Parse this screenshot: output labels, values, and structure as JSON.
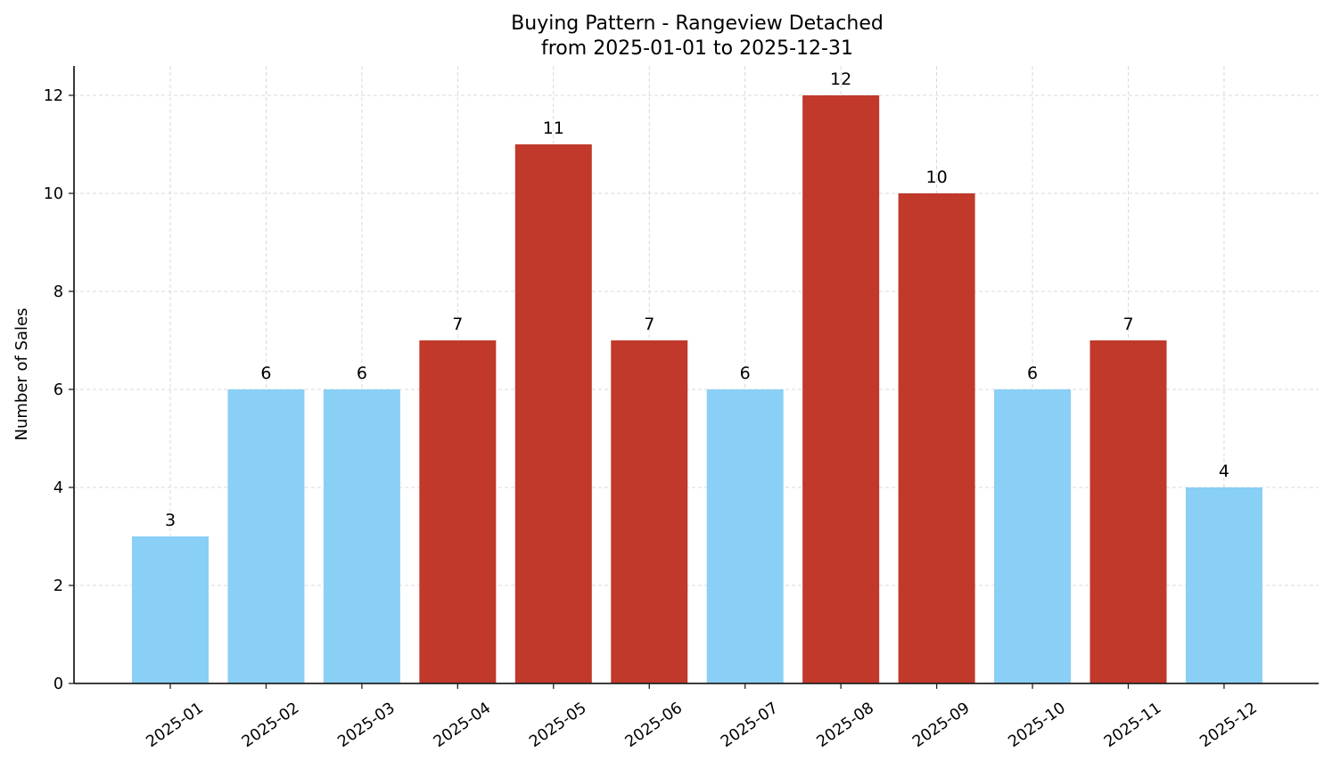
{
  "chart_data": {
    "type": "bar",
    "title": "Buying Pattern - Rangeview Detached",
    "subtitle": "from 2025-01-01 to 2025-12-31",
    "xlabel": "",
    "ylabel": "Number of Sales",
    "categories": [
      "2025-01",
      "2025-02",
      "2025-03",
      "2025-04",
      "2025-05",
      "2025-06",
      "2025-07",
      "2025-08",
      "2025-09",
      "2025-10",
      "2025-11",
      "2025-12"
    ],
    "values": [
      3,
      6,
      6,
      7,
      11,
      7,
      6,
      12,
      10,
      6,
      7,
      4
    ],
    "highlighted": [
      false,
      false,
      false,
      true,
      true,
      true,
      false,
      true,
      true,
      false,
      true,
      false
    ],
    "yticks": [
      0,
      2,
      4,
      6,
      8,
      10,
      12
    ],
    "ylim": [
      0,
      12.6
    ],
    "grid": true,
    "legend": null,
    "colors": {
      "normal": "#89CFF6",
      "highlight": "#C0392B",
      "axis": "#222222",
      "grid": "#d0d0d0"
    }
  }
}
